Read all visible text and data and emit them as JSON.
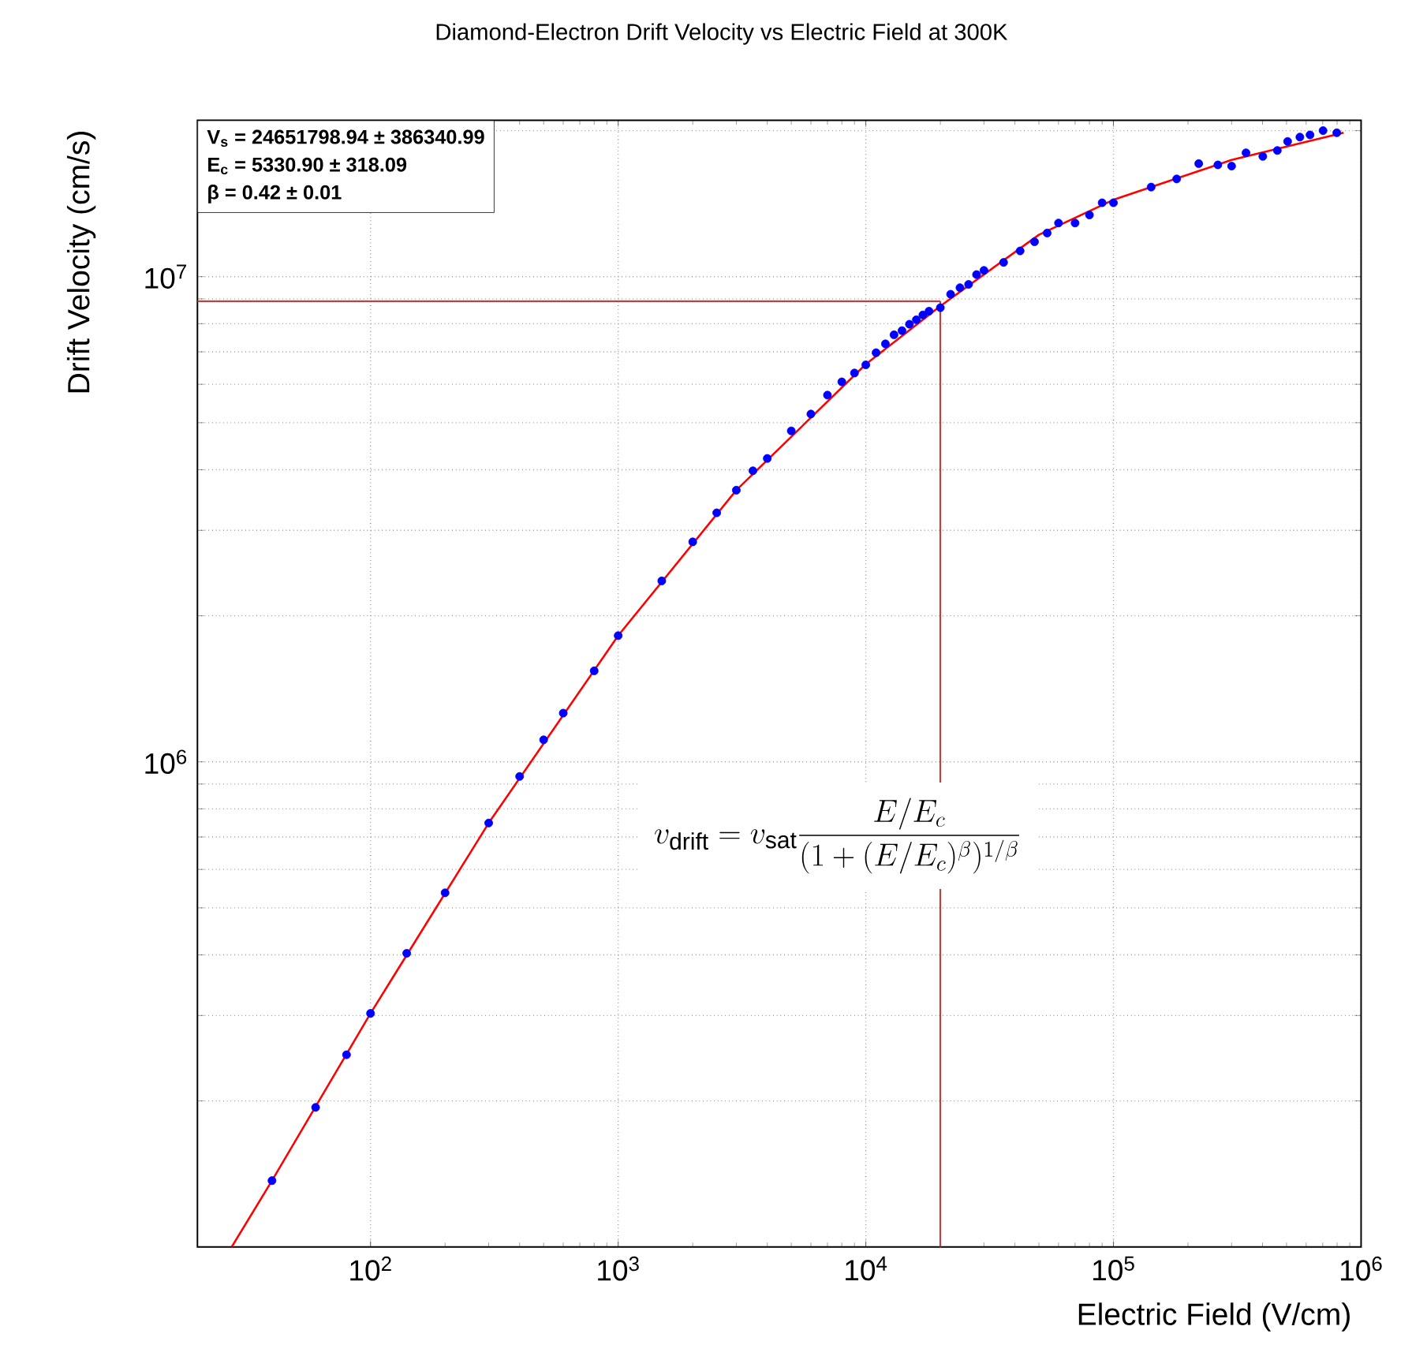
{
  "chart_data": {
    "type": "scatter",
    "title": "Diamond-Electron Drift Velocity vs Electric Field at 300K",
    "xlabel": "Electric Field (V/cm)",
    "ylabel": "Drift Velocity (cm/s)",
    "log": "xy",
    "grid": true,
    "xlim": [
      20,
      1000000
    ],
    "ylim": [
      100000,
      21000000
    ],
    "xticks": [
      {
        "value": 100,
        "label": "10$^{2}$"
      },
      {
        "value": 1000,
        "label": "10$^{3}$"
      },
      {
        "value": 10000,
        "label": "10$^{4}$"
      },
      {
        "value": 100000,
        "label": "10$^{5}$"
      },
      {
        "value": 1000000,
        "label": "10$^{6}$"
      }
    ],
    "yticks": [
      {
        "value": 200000,
        "label": null
      },
      {
        "value": 300000,
        "label": null
      },
      {
        "value": 400000,
        "label": null
      },
      {
        "value": 500000,
        "label": null
      },
      {
        "value": 600000,
        "label": null
      },
      {
        "value": 700000,
        "label": null
      },
      {
        "value": 800000,
        "label": null
      },
      {
        "value": 900000,
        "label": null
      },
      {
        "value": 1000000,
        "label": "10$^{6}$"
      },
      {
        "value": 2000000,
        "label": null
      },
      {
        "value": 3000000,
        "label": null
      },
      {
        "value": 4000000,
        "label": null
      },
      {
        "value": 5000000,
        "label": null
      },
      {
        "value": 6000000,
        "label": null
      },
      {
        "value": 7000000,
        "label": null
      },
      {
        "value": 8000000,
        "label": null
      },
      {
        "value": 9000000,
        "label": null
      },
      {
        "value": 10000000,
        "label": "10$^{7}$"
      },
      {
        "value": 20000000,
        "label": null
      }
    ],
    "series": [
      {
        "color": "#0000ff",
        "marker": "circle",
        "x": [
          40,
          60,
          80,
          100,
          140,
          200,
          300,
          400,
          500,
          600,
          800,
          1000,
          1500,
          2000,
          2500,
          3000,
          3500,
          4000,
          5000,
          6000,
          7000,
          8000,
          9000,
          10000,
          11000,
          12000,
          13000,
          14000,
          15000,
          16000,
          17000,
          18000,
          20000,
          22000,
          24000,
          26000,
          28000,
          30000,
          36000,
          42000,
          48000,
          54000,
          60000,
          70000,
          80000,
          90000,
          100000,
          142000,
          180000,
          221000,
          264000,
          300000,
          343000,
          401000,
          459000,
          505000,
          566000,
          622000,
          702000,
          798000
        ],
        "values": [
          137000,
          194000,
          249000,
          303000,
          403000,
          537000,
          748000,
          933000,
          1110000,
          1260000,
          1540000,
          1820000,
          2360000,
          2840000,
          3260000,
          3630000,
          3980000,
          4220000,
          4810000,
          5210000,
          5700000,
          6070000,
          6330000,
          6580000,
          6970000,
          7270000,
          7590000,
          7740000,
          7980000,
          8150000,
          8340000,
          8490000,
          8630000,
          9200000,
          9490000,
          9640000,
          10100000,
          10300000,
          10700000,
          11300000,
          11800000,
          12300000,
          12900000,
          12900000,
          13400000,
          14200000,
          14200000,
          15300000,
          15900000,
          17100000,
          17000000,
          16900000,
          18000000,
          17700000,
          18200000,
          19000000,
          19400000,
          19600000,
          20000000,
          19800000
        ]
      },
      {
        "type": "line",
        "color": "#ff0000",
        "x": [
          27.5,
          40,
          100,
          300,
          1000,
          3000,
          10000,
          20000,
          50000,
          100000,
          300000,
          850000
        ],
        "values": [
          100000,
          137000,
          303000,
          748000,
          1820000,
          3630000,
          6600000,
          8700000,
          12200000,
          14400000,
          17400000,
          19800000
        ]
      }
    ],
    "ref_lines": [
      {
        "axis": "y",
        "value": 8900000,
        "color": "#b84444"
      },
      {
        "axis": "x",
        "value": 20000,
        "color": "#b84444"
      }
    ],
    "annotations": [
      "V$_{s}$ = 24651798.94 ± 386340.99",
      "E$_{c}$ = 5330.90 ± 318.09",
      "β = 0.42 ± 0.01",
      "v_{\\mathrm{drift}} = v_{\\mathrm{sat}}\\frac{E/E_c}{(1+(E/E_c)^{\\beta})^{1/\\beta}}"
    ]
  }
}
